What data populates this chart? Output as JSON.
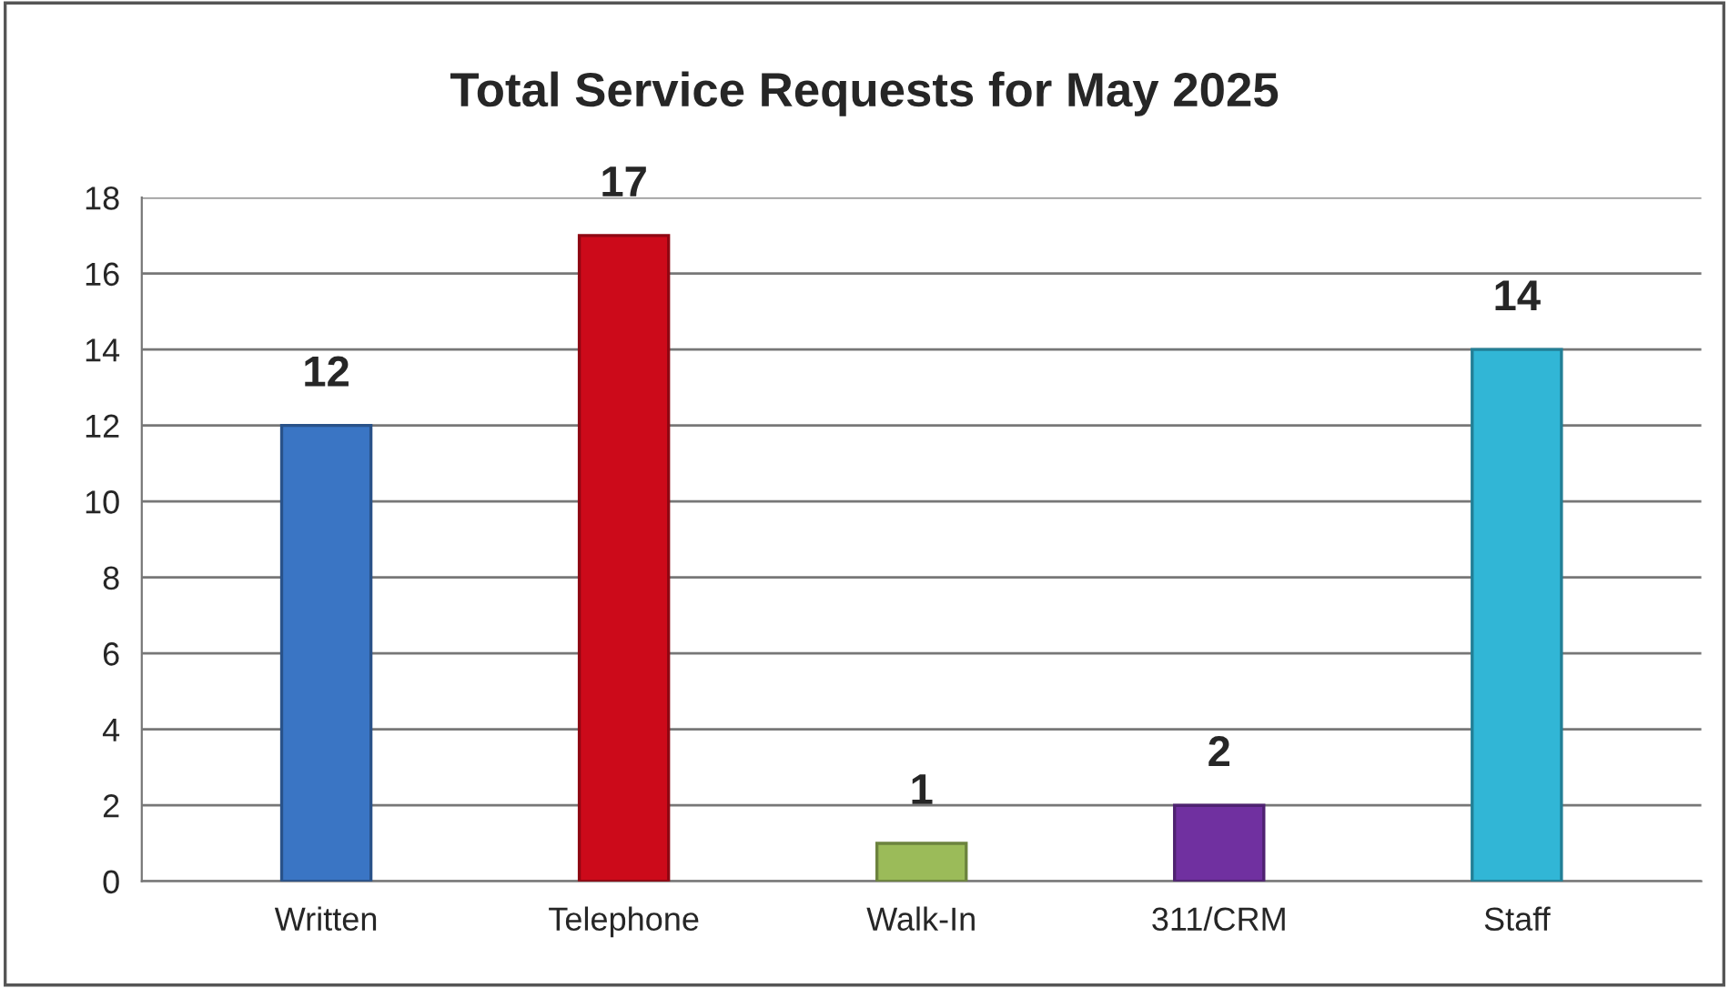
{
  "chart_data": {
    "type": "bar",
    "title": "Total Service Requests for May 2025",
    "categories": [
      "Written",
      "Telephone",
      "Walk-In",
      "311/CRM",
      "Staff"
    ],
    "values": [
      12,
      17,
      1,
      2,
      14
    ],
    "colors": [
      "#3a75c4",
      "#cc0a1a",
      "#9bbb59",
      "#7030a0",
      "#31b6d6"
    ],
    "ylim": [
      0,
      18
    ],
    "yticks": [
      0,
      2,
      4,
      6,
      8,
      10,
      12,
      14,
      16,
      18
    ],
    "grid": "y",
    "data_labels": true
  }
}
